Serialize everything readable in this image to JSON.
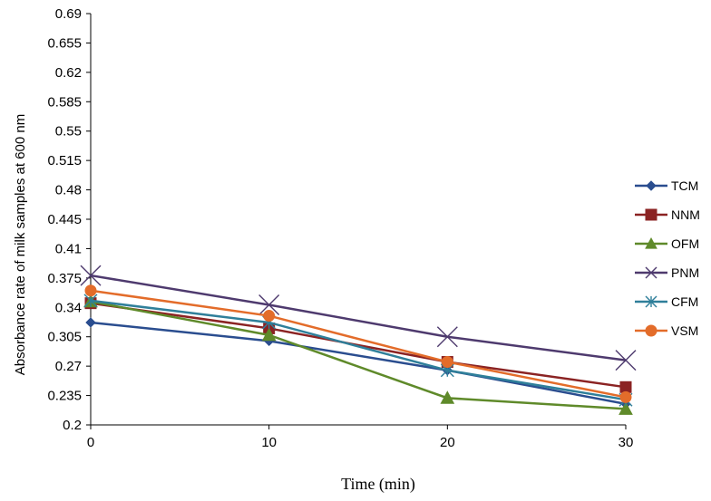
{
  "chart_data": {
    "type": "line",
    "title": "",
    "xlabel": "Time (min)",
    "ylabel": "Absorbance rate of milk  samples at 600 nm",
    "x": [
      0,
      10,
      20,
      30
    ],
    "x_ticks": [
      "0",
      "10",
      "20",
      "30"
    ],
    "xlim": [
      0,
      30
    ],
    "ylim": [
      0.2,
      0.69
    ],
    "y_ticks": [
      "0.2",
      "0.235",
      "0.27",
      "0.305",
      "0.34",
      "0.375",
      "0.41",
      "0.445",
      "0.48",
      "0.515",
      "0.55",
      "0.585",
      "0.62",
      "0.655",
      "0.69"
    ],
    "grid": false,
    "legend_position": "right",
    "series": [
      {
        "name": "TCM",
        "values": [
          0.322,
          0.3,
          0.265,
          0.225
        ],
        "color": "#2a4d8f",
        "marker": "diamond"
      },
      {
        "name": "NNM",
        "values": [
          0.345,
          0.315,
          0.275,
          0.245
        ],
        "color": "#8b2323",
        "marker": "square"
      },
      {
        "name": "OFM",
        "values": [
          0.347,
          0.307,
          0.232,
          0.219
        ],
        "color": "#5f8a2a",
        "marker": "triangle"
      },
      {
        "name": "PNM",
        "values": [
          0.378,
          0.343,
          0.305,
          0.277
        ],
        "color": "#4e3a6e",
        "marker": "x"
      },
      {
        "name": "CFM",
        "values": [
          0.348,
          0.322,
          0.265,
          0.23
        ],
        "color": "#2f7f9a",
        "marker": "asterisk"
      },
      {
        "name": "VSM",
        "values": [
          0.36,
          0.33,
          0.275,
          0.233
        ],
        "color": "#e36c2a",
        "marker": "circle"
      }
    ]
  }
}
